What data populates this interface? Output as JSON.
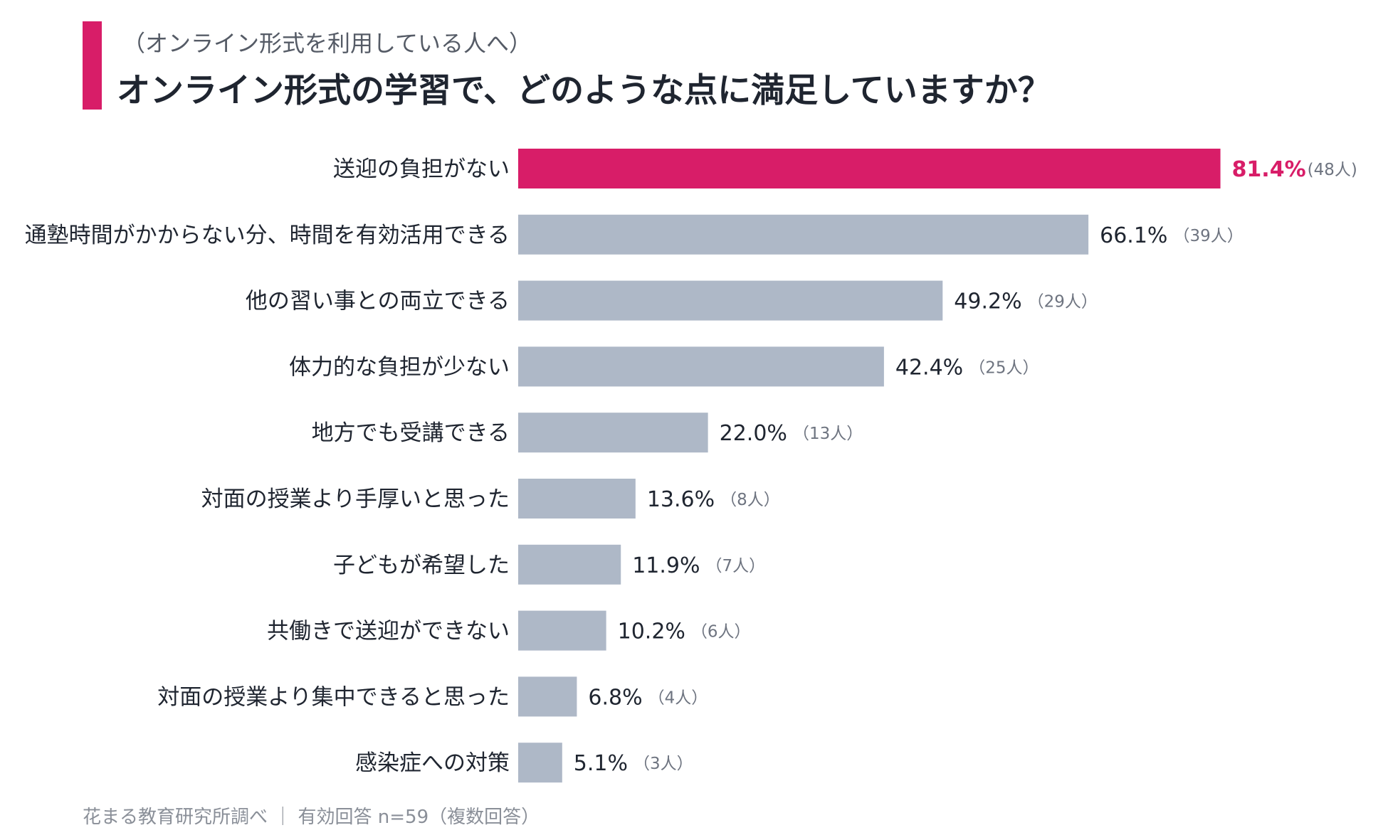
{
  "header": {
    "subtitle": "（オンライン形式を利用している人へ）",
    "title": "オンライン形式の学習で、どのような点に満足していますか？"
  },
  "colors": {
    "highlight": "#d81d68",
    "bar": "#aeb8c7",
    "label": "#1f2530",
    "count": "#6e7480"
  },
  "chart_data": {
    "type": "bar",
    "orientation": "horizontal",
    "categories": [
      "送迎の負担がない",
      "通塾時間がかからない分、時間を有効活用できる",
      "他の習い事との両立できる",
      "体力的な負担が少ない",
      "地方でも受講できる",
      "対面の授業より手厚いと思った",
      "子どもが希望した",
      "共働きで送迎ができない",
      "対面の授業より集中できると思った",
      "感染症への対策"
    ],
    "values": [
      81.4,
      66.1,
      49.2,
      42.4,
      22.0,
      13.6,
      11.9,
      10.2,
      6.8,
      5.1
    ],
    "value_labels": [
      "81.4%",
      "66.1%",
      "49.2%",
      "42.4%",
      "22.0%",
      "13.6%",
      "11.9%",
      "10.2%",
      "6.8%",
      "5.1%"
    ],
    "count_labels": [
      "(48人)",
      "（39人）",
      "（29人）",
      "（25人）",
      "（13人）",
      "（8人）",
      "（7人）",
      "（6人）",
      "（4人）",
      "（3人）"
    ],
    "highlight_index": 0,
    "xlim": [
      0,
      100
    ],
    "grid": false,
    "legend": "none"
  },
  "footer": {
    "source": "花まる教育研究所調べ ｜ 有効回答 n=59（複数回答）"
  }
}
